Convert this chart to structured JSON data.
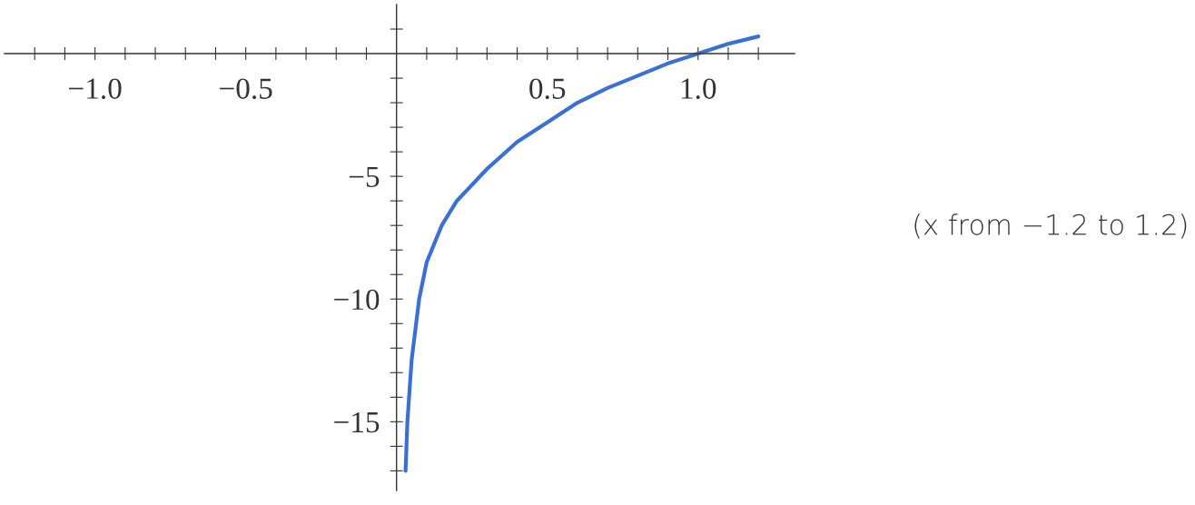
{
  "chart_data": {
    "type": "line",
    "x": [
      0.03,
      0.036,
      0.05,
      0.075,
      0.1,
      0.15,
      0.2,
      0.3,
      0.4,
      0.5,
      0.6,
      0.7,
      0.8,
      0.9,
      1.0,
      1.1,
      1.2
    ],
    "series": [
      {
        "color": "#3a6fd8",
        "values": [
          -17,
          -15,
          -12.5,
          -10,
          -8.5,
          -7,
          -6,
          -4.7,
          -3.6,
          -2.8,
          -2.0,
          -1.4,
          -0.9,
          -0.4,
          0,
          0.4,
          0.7
        ]
      }
    ],
    "xlim": [
      -1.3,
      1.32
    ],
    "ylim": [
      -17.8,
      2.0
    ],
    "xticks": [
      {
        "value": -1.2,
        "label": null
      },
      {
        "value": -1.1,
        "label": null
      },
      {
        "value": -1.0,
        "label": "−1.0"
      },
      {
        "value": -0.9,
        "label": null
      },
      {
        "value": -0.8,
        "label": null
      },
      {
        "value": -0.7,
        "label": null
      },
      {
        "value": -0.6,
        "label": null
      },
      {
        "value": -0.5,
        "label": "−0.5"
      },
      {
        "value": -0.4,
        "label": null
      },
      {
        "value": -0.3,
        "label": null
      },
      {
        "value": -0.2,
        "label": null
      },
      {
        "value": -0.1,
        "label": null
      },
      {
        "value": 0.1,
        "label": null
      },
      {
        "value": 0.2,
        "label": null
      },
      {
        "value": 0.3,
        "label": null
      },
      {
        "value": 0.4,
        "label": null
      },
      {
        "value": 0.5,
        "label": "0.5"
      },
      {
        "value": 0.6,
        "label": null
      },
      {
        "value": 0.7,
        "label": null
      },
      {
        "value": 0.8,
        "label": null
      },
      {
        "value": 0.9,
        "label": null
      },
      {
        "value": 1.0,
        "label": "1.0"
      },
      {
        "value": 1.1,
        "label": null
      },
      {
        "value": 1.2,
        "label": null
      }
    ],
    "yticks": [
      {
        "value": -17,
        "label": null
      },
      {
        "value": -16,
        "label": null
      },
      {
        "value": -15,
        "label": "−15"
      },
      {
        "value": -14,
        "label": null
      },
      {
        "value": -13,
        "label": null
      },
      {
        "value": -12,
        "label": null
      },
      {
        "value": -11,
        "label": null
      },
      {
        "value": -10,
        "label": "−10"
      },
      {
        "value": -9,
        "label": null
      },
      {
        "value": -8,
        "label": null
      },
      {
        "value": -7,
        "label": null
      },
      {
        "value": -6,
        "label": null
      },
      {
        "value": -5,
        "label": "−5"
      },
      {
        "value": -4,
        "label": null
      },
      {
        "value": -3,
        "label": null
      },
      {
        "value": -2,
        "label": null
      },
      {
        "value": -1,
        "label": null
      },
      {
        "value": 1,
        "label": null
      }
    ],
    "grid": false,
    "marker": "none",
    "line_style": "solid",
    "annotations": [
      "(x from −1.2 to 1.2)"
    ]
  }
}
